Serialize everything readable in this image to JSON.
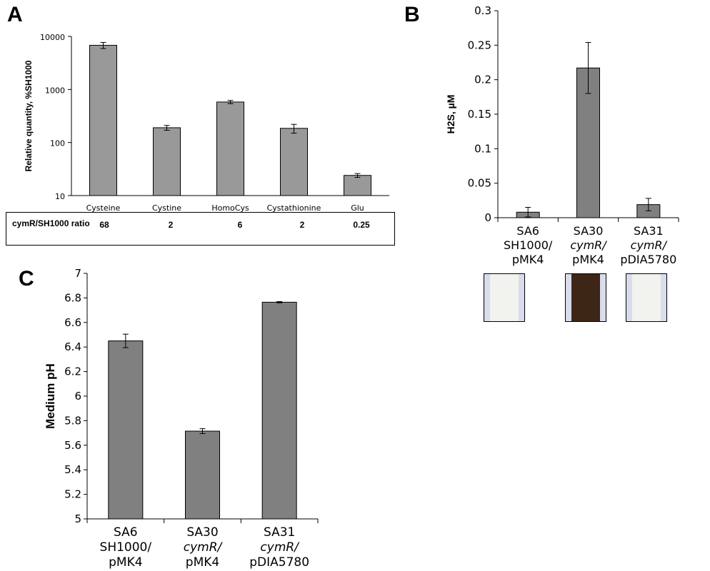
{
  "panels": {
    "A": {
      "letter": "A"
    },
    "B": {
      "letter": "B"
    },
    "C": {
      "letter": "C"
    }
  },
  "ratio_table": {
    "label": "cymR/SH1000 ratio",
    "values": [
      "68",
      "2",
      "6",
      "2",
      "0.25"
    ]
  },
  "strips": {
    "colors": {
      "negative": "#f2f2ee",
      "positive": "#3e2616",
      "frame": "#d9dcec"
    },
    "results": [
      "negative",
      "positive",
      "negative"
    ]
  },
  "chart_data": [
    {
      "panel": "A",
      "type": "bar",
      "scale": "log",
      "categories": [
        "Cysteine",
        "Cystine",
        "HomoCys",
        "Cystathionine",
        "Glu"
      ],
      "values": [
        6800,
        190,
        580,
        185,
        24
      ],
      "errors": [
        900,
        20,
        40,
        35,
        2
      ],
      "ylabel": "Relative quantity, %SH1000",
      "yticks": [
        "10",
        "100",
        "1000",
        "10000"
      ],
      "ylim": [
        10,
        10000
      ],
      "color": "#999999"
    },
    {
      "panel": "B",
      "type": "bar",
      "categories": [
        {
          "line1": "SA6",
          "line2": "SH1000/",
          "line3": "pMK4"
        },
        {
          "line1": "SA30",
          "line2": "cymR/",
          "line3": "pMK4"
        },
        {
          "line1": "SA31",
          "line2": "cymR/",
          "line3": "pDIA5780"
        }
      ],
      "values": [
        0.008,
        0.217,
        0.019
      ],
      "errors": [
        0.007,
        0.037,
        0.009
      ],
      "ylabel": "H2S, µM",
      "yticks": [
        "0",
        "0.05",
        "0.1",
        "0.15",
        "0.2",
        "0.25",
        "0.3"
      ],
      "ylim": [
        0,
        0.3
      ],
      "color": "#808080"
    },
    {
      "panel": "C",
      "type": "bar",
      "categories": [
        {
          "line1": "SA6",
          "line2": "SH1000/",
          "line3": "pMK4"
        },
        {
          "line1": "SA30",
          "line2": "cymR/",
          "line3": "pMK4"
        },
        {
          "line1": "SA31",
          "line2": "cymR/",
          "line3": "pDIA5780"
        }
      ],
      "values": [
        6.45,
        5.715,
        6.765
      ],
      "errors": [
        0.055,
        0.02,
        0.005
      ],
      "ylabel": "Medium pH",
      "yticks": [
        "5",
        "5.2",
        "5.4",
        "5.6",
        "5.8",
        "6",
        "6.2",
        "6.4",
        "6.6",
        "6.8",
        "7"
      ],
      "ylim": [
        5,
        7
      ],
      "color": "#808080"
    }
  ]
}
